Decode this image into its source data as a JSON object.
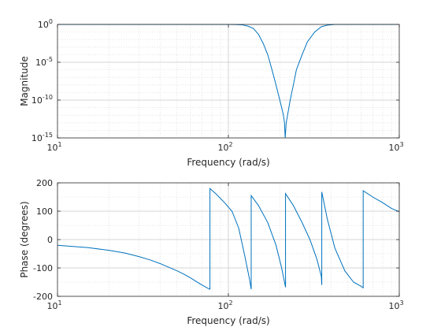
{
  "chart_data": [
    {
      "type": "line",
      "xlabel": "Frequency (rad/s)",
      "ylabel": "Magnitude",
      "xscale": "log",
      "yscale": "log",
      "xlim": [
        10,
        1000
      ],
      "ylim": [
        1e-15,
        1
      ],
      "grid": true,
      "line_color": "#0072bd",
      "x_ticks": [
        {
          "base": "10",
          "exp": "1"
        },
        {
          "base": "10",
          "exp": "2"
        },
        {
          "base": "10",
          "exp": "3"
        }
      ],
      "y_ticks": [
        {
          "base": "10",
          "exp": "0"
        },
        {
          "base": "10",
          "exp": "-5"
        },
        {
          "base": "10",
          "exp": "-10"
        },
        {
          "base": "10",
          "exp": "-15"
        }
      ],
      "series": [
        {
          "x": [
            10,
            20,
            40,
            60,
            80,
            100,
            110,
            120,
            130,
            140,
            150,
            160,
            170,
            180,
            190,
            200,
            205,
            210,
            213,
            215,
            218,
            222,
            230,
            240,
            250,
            270,
            290,
            320,
            350,
            380,
            420,
            480,
            600,
            1000
          ],
          "y": [
            1,
            1,
            1,
            1,
            1,
            1,
            0.98,
            0.9,
            0.6,
            0.3,
            0.05,
            0.003,
            0.0001,
            1e-06,
            1e-08,
            1e-10,
            1e-11,
            1e-12,
            1e-13,
            1e-15,
            1e-13,
            1e-12,
            1e-10,
            1e-08,
            1e-06,
            0.0001,
            0.005,
            0.1,
            0.5,
            0.8,
            1,
            1,
            1,
            1
          ]
        }
      ]
    },
    {
      "type": "line",
      "xlabel": "Frequency (rad/s)",
      "ylabel": "Phase (degrees)",
      "xscale": "log",
      "xlim": [
        10,
        1000
      ],
      "ylim": [
        -200,
        200
      ],
      "y_ticks": [
        200,
        100,
        0,
        -100,
        -200
      ],
      "x_ticks": [
        {
          "base": "10",
          "exp": "1"
        },
        {
          "base": "10",
          "exp": "2"
        },
        {
          "base": "10",
          "exp": "3"
        }
      ],
      "grid": true,
      "line_color": "#0072bd",
      "series": [
        {
          "x": [
            10,
            15,
            20,
            25,
            30,
            35,
            40,
            45,
            50,
            55,
            60,
            65,
            70,
            75,
            78,
            78.01,
            85,
            95,
            105,
            115,
            125,
            133,
            136,
            136.01,
            150,
            170,
            190,
            205,
            213,
            216,
            216.01,
            240,
            270,
            300,
            330,
            350,
            352,
            352.01,
            380,
            420,
            480,
            540,
            600,
            615,
            615.01,
            700,
            800,
            900,
            1000
          ],
          "y": [
            -20,
            -28,
            -38,
            -48,
            -60,
            -72,
            -85,
            -98,
            -110,
            -122,
            -135,
            -148,
            -160,
            -170,
            -175,
            180,
            160,
            130,
            100,
            40,
            -60,
            -140,
            -175,
            155,
            120,
            60,
            -20,
            -100,
            -150,
            -168,
            162,
            120,
            60,
            0,
            -70,
            -130,
            -160,
            168,
            70,
            -30,
            -110,
            -150,
            -165,
            -170,
            172,
            150,
            130,
            110,
            98
          ]
        }
      ]
    }
  ]
}
